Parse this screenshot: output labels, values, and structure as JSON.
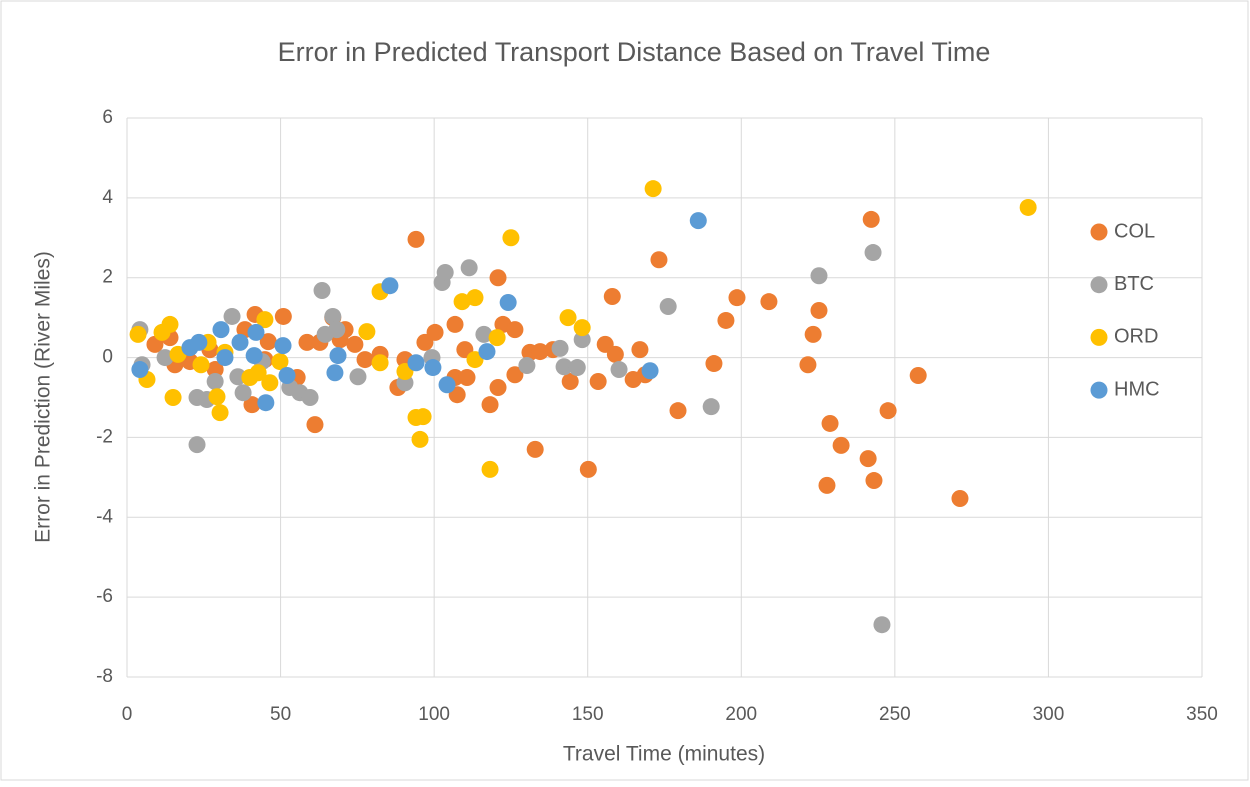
{
  "chart_data": {
    "type": "scatter",
    "title": "Error in Predicted Transport Distance Based on Travel Time",
    "x_label": "Travel Time (minutes)",
    "y_label": "Error in Prediction (River Miles)",
    "xlim": [
      0,
      350
    ],
    "xticks": [
      0,
      50,
      100,
      150,
      200,
      250,
      300,
      350
    ],
    "ylim": [
      -8,
      6
    ],
    "yticks": [
      -8,
      -6,
      -4,
      -2,
      0,
      2,
      4,
      6
    ],
    "grid": true,
    "legend": "right",
    "series": [
      {
        "name": "COL",
        "color": "#ed7d31",
        "x": [
          9.1,
          14,
          15.6,
          20.5,
          27,
          28.7,
          38.4,
          40.7,
          41.7,
          44.9,
          46,
          50.9,
          55.4,
          58.6,
          61.2,
          62.8,
          67,
          69.4,
          71,
          74.2,
          77.5,
          82.4,
          88.2,
          90.5,
          94.1,
          97,
          100.3,
          106.8,
          106.8,
          107.5,
          110,
          110.7,
          118.2,
          120.8,
          120.8,
          122.4,
          126.3,
          126.3,
          131.2,
          132.9,
          134.5,
          138.7,
          144.3,
          150.2,
          153.4,
          155.7,
          158,
          159,
          164.8,
          167,
          168.7,
          173.2,
          179.4,
          191.1,
          195,
          198.6,
          209,
          221.7,
          223.4,
          225.3,
          228.9,
          227.9,
          232.5,
          241.3,
          242.3,
          243.2,
          247.8,
          257.6,
          271.2
        ],
        "values": [
          0.33,
          0.5,
          -0.18,
          -0.1,
          0.2,
          -0.3,
          0.7,
          -1.18,
          1.08,
          -0.05,
          0.4,
          1.03,
          -0.5,
          0.38,
          -1.68,
          0.38,
          1.0,
          0.45,
          0.7,
          0.33,
          -0.05,
          0.08,
          -0.75,
          -0.05,
          2.96,
          0.38,
          0.63,
          0.83,
          -0.5,
          -0.93,
          0.2,
          -0.5,
          -1.18,
          2.0,
          -0.75,
          0.83,
          0.7,
          -0.43,
          0.13,
          -2.3,
          0.15,
          0.2,
          -0.6,
          -2.8,
          -0.6,
          0.33,
          1.53,
          0.08,
          -0.55,
          0.2,
          -0.43,
          2.45,
          -1.33,
          -0.15,
          0.93,
          1.5,
          1.4,
          -0.18,
          0.58,
          1.18,
          -1.65,
          -3.2,
          -2.2,
          -2.53,
          3.46,
          -3.08,
          -1.33,
          -0.45,
          -3.53
        ]
      },
      {
        "name": "BTC",
        "color": "#a5a5a5",
        "x": [
          4.2,
          4.9,
          12.4,
          22.8,
          22.8,
          26,
          28.7,
          34.2,
          36.1,
          37.8,
          44,
          53,
          56.3,
          59.6,
          63.5,
          64.5,
          67,
          68.3,
          75.2,
          90.5,
          99.3,
          102.6,
          103.6,
          111.4,
          116.2,
          130.2,
          141,
          142.3,
          146.6,
          148.2,
          160.2,
          176.2,
          190.2,
          225.3,
          242.9,
          245.8
        ],
        "values": [
          0.7,
          -0.18,
          0,
          -2.18,
          -1.0,
          -1.05,
          -0.6,
          1.03,
          -0.48,
          -0.88,
          -0.1,
          -0.75,
          -0.88,
          -1.0,
          1.68,
          0.58,
          1.03,
          0.7,
          -0.48,
          -0.63,
          0,
          1.88,
          2.13,
          2.25,
          0.58,
          -0.2,
          0.23,
          -0.23,
          -0.25,
          0.45,
          -0.3,
          1.28,
          -1.23,
          2.05,
          2.63,
          -6.69
        ]
      },
      {
        "name": "ORD",
        "color": "#ffc000",
        "x": [
          3.6,
          6.5,
          11.4,
          14,
          15,
          16.6,
          24.1,
          26.4,
          29.3,
          30.3,
          31.9,
          40,
          42.7,
          44.9,
          46.5,
          49.8,
          78.1,
          82.4,
          82.4,
          90.5,
          94.1,
          95.4,
          96.4,
          109.1,
          113.3,
          113.3,
          118.2,
          120.5,
          125,
          143.6,
          148.2,
          171.3,
          293.4
        ],
        "values": [
          0.58,
          -0.55,
          0.63,
          0.83,
          -1.0,
          0.08,
          -0.18,
          0.38,
          -0.98,
          -1.38,
          0.13,
          -0.5,
          -0.38,
          0.95,
          -0.63,
          -0.1,
          0.65,
          1.65,
          -0.13,
          -0.35,
          -1.5,
          -2.05,
          -1.48,
          1.4,
          1.5,
          -0.05,
          -2.8,
          0.5,
          3.0,
          1.0,
          0.75,
          4.23,
          3.76
        ]
      },
      {
        "name": "HMC",
        "color": "#5b9bd5",
        "x": [
          4.2,
          20.5,
          23.4,
          30.6,
          31.9,
          36.8,
          42,
          41.4,
          45.2,
          50.8,
          52.1,
          67.7,
          68.7,
          85.6,
          94.1,
          99.6,
          104.2,
          117.2,
          124.1,
          170.3,
          186
        ],
        "values": [
          -0.3,
          0.25,
          0.38,
          0.7,
          0,
          0.38,
          0.63,
          0.05,
          -1.13,
          0.3,
          -0.45,
          -0.38,
          0.05,
          1.8,
          -0.13,
          -0.25,
          -0.68,
          0.15,
          1.38,
          -0.33,
          3.43
        ]
      }
    ]
  }
}
